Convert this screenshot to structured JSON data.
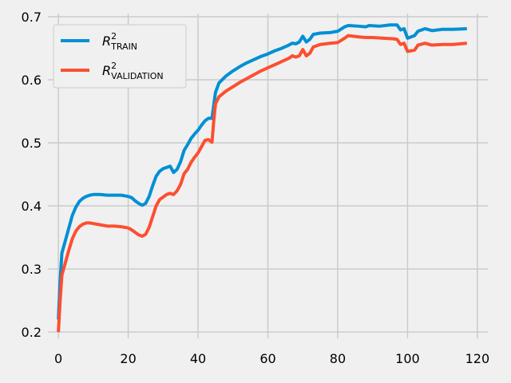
{
  "chart_data": {
    "type": "line",
    "title": "",
    "xlabel": "",
    "ylabel": "",
    "xlim": [
      -3,
      123
    ],
    "ylim": [
      0.19,
      0.705
    ],
    "x_ticks": [
      0,
      20,
      40,
      60,
      80,
      100,
      120
    ],
    "y_ticks": [
      0.2,
      0.3,
      0.4,
      0.5,
      0.6,
      0.7
    ],
    "x_tick_labels": [
      "0",
      "20",
      "40",
      "60",
      "80",
      "100",
      "120"
    ],
    "y_tick_labels": [
      "0.2",
      "0.3",
      "0.4",
      "0.5",
      "0.6",
      "0.7"
    ],
    "grid": true,
    "legend_placement": "top-left",
    "background": "#f0f0f0",
    "series": [
      {
        "symbol": "R",
        "sup": "2",
        "sub": "TRAIN",
        "color": "#008fd5",
        "points": [
          [
            0,
            0.22
          ],
          [
            0.5,
            0.28
          ],
          [
            1,
            0.325
          ],
          [
            2,
            0.345
          ],
          [
            3,
            0.365
          ],
          [
            4,
            0.385
          ],
          [
            5,
            0.398
          ],
          [
            6,
            0.407
          ],
          [
            7,
            0.412
          ],
          [
            8,
            0.415
          ],
          [
            9,
            0.417
          ],
          [
            10,
            0.418
          ],
          [
            12,
            0.418
          ],
          [
            14,
            0.417
          ],
          [
            16,
            0.417
          ],
          [
            18,
            0.417
          ],
          [
            20,
            0.415
          ],
          [
            21,
            0.413
          ],
          [
            22,
            0.408
          ],
          [
            23,
            0.404
          ],
          [
            24,
            0.401
          ],
          [
            25,
            0.404
          ],
          [
            26,
            0.415
          ],
          [
            27,
            0.432
          ],
          [
            28,
            0.447
          ],
          [
            29,
            0.455
          ],
          [
            30,
            0.459
          ],
          [
            31,
            0.461
          ],
          [
            32,
            0.463
          ],
          [
            33,
            0.453
          ],
          [
            34,
            0.458
          ],
          [
            35,
            0.47
          ],
          [
            36,
            0.488
          ],
          [
            37,
            0.497
          ],
          [
            38,
            0.507
          ],
          [
            39,
            0.514
          ],
          [
            40,
            0.52
          ],
          [
            41,
            0.528
          ],
          [
            42,
            0.535
          ],
          [
            43,
            0.539
          ],
          [
            44,
            0.539
          ],
          [
            44.5,
            0.56
          ],
          [
            45,
            0.58
          ],
          [
            46,
            0.595
          ],
          [
            48,
            0.606
          ],
          [
            50,
            0.614
          ],
          [
            52,
            0.621
          ],
          [
            54,
            0.627
          ],
          [
            56,
            0.632
          ],
          [
            58,
            0.637
          ],
          [
            60,
            0.641
          ],
          [
            62,
            0.646
          ],
          [
            64,
            0.65
          ],
          [
            66,
            0.655
          ],
          [
            67,
            0.658
          ],
          [
            68,
            0.657
          ],
          [
            69,
            0.66
          ],
          [
            70,
            0.669
          ],
          [
            71,
            0.66
          ],
          [
            72,
            0.664
          ],
          [
            73,
            0.672
          ],
          [
            75,
            0.674
          ],
          [
            78,
            0.675
          ],
          [
            80,
            0.677
          ],
          [
            82,
            0.684
          ],
          [
            83,
            0.686
          ],
          [
            86,
            0.685
          ],
          [
            88,
            0.684
          ],
          [
            89,
            0.686
          ],
          [
            92,
            0.685
          ],
          [
            95,
            0.687
          ],
          [
            97,
            0.687
          ],
          [
            98,
            0.679
          ],
          [
            99,
            0.681
          ],
          [
            100,
            0.666
          ],
          [
            101,
            0.668
          ],
          [
            102,
            0.67
          ],
          [
            103,
            0.677
          ],
          [
            105,
            0.681
          ],
          [
            107,
            0.678
          ],
          [
            110,
            0.68
          ],
          [
            113,
            0.68
          ],
          [
            117,
            0.681
          ]
        ]
      },
      {
        "symbol": "R",
        "sup": "2",
        "sub": "VALIDATION",
        "color": "#fc4f30",
        "points": [
          [
            0,
            0.2
          ],
          [
            0.5,
            0.25
          ],
          [
            1,
            0.29
          ],
          [
            2,
            0.31
          ],
          [
            3,
            0.33
          ],
          [
            4,
            0.348
          ],
          [
            5,
            0.36
          ],
          [
            6,
            0.367
          ],
          [
            7,
            0.371
          ],
          [
            8,
            0.373
          ],
          [
            9,
            0.373
          ],
          [
            10,
            0.372
          ],
          [
            12,
            0.37
          ],
          [
            14,
            0.368
          ],
          [
            16,
            0.368
          ],
          [
            18,
            0.367
          ],
          [
            20,
            0.365
          ],
          [
            21,
            0.362
          ],
          [
            22,
            0.358
          ],
          [
            23,
            0.354
          ],
          [
            24,
            0.352
          ],
          [
            25,
            0.355
          ],
          [
            26,
            0.366
          ],
          [
            27,
            0.383
          ],
          [
            28,
            0.4
          ],
          [
            29,
            0.41
          ],
          [
            30,
            0.414
          ],
          [
            31,
            0.418
          ],
          [
            32,
            0.42
          ],
          [
            33,
            0.418
          ],
          [
            34,
            0.424
          ],
          [
            35,
            0.434
          ],
          [
            36,
            0.451
          ],
          [
            37,
            0.458
          ],
          [
            38,
            0.469
          ],
          [
            39,
            0.477
          ],
          [
            40,
            0.484
          ],
          [
            41,
            0.494
          ],
          [
            42,
            0.504
          ],
          [
            43,
            0.505
          ],
          [
            44,
            0.501
          ],
          [
            44.5,
            0.535
          ],
          [
            45,
            0.562
          ],
          [
            46,
            0.573
          ],
          [
            48,
            0.582
          ],
          [
            50,
            0.589
          ],
          [
            52,
            0.596
          ],
          [
            54,
            0.602
          ],
          [
            56,
            0.608
          ],
          [
            58,
            0.614
          ],
          [
            60,
            0.619
          ],
          [
            62,
            0.624
          ],
          [
            64,
            0.629
          ],
          [
            66,
            0.634
          ],
          [
            67,
            0.638
          ],
          [
            68,
            0.636
          ],
          [
            69,
            0.638
          ],
          [
            70,
            0.648
          ],
          [
            71,
            0.638
          ],
          [
            72,
            0.642
          ],
          [
            73,
            0.652
          ],
          [
            75,
            0.656
          ],
          [
            78,
            0.658
          ],
          [
            80,
            0.659
          ],
          [
            82,
            0.666
          ],
          [
            83,
            0.67
          ],
          [
            86,
            0.668
          ],
          [
            88,
            0.667
          ],
          [
            90,
            0.667
          ],
          [
            93,
            0.666
          ],
          [
            96,
            0.665
          ],
          [
            97,
            0.664
          ],
          [
            98,
            0.656
          ],
          [
            99,
            0.658
          ],
          [
            100,
            0.645
          ],
          [
            101,
            0.646
          ],
          [
            102,
            0.647
          ],
          [
            103,
            0.655
          ],
          [
            105,
            0.658
          ],
          [
            107,
            0.655
          ],
          [
            110,
            0.656
          ],
          [
            113,
            0.656
          ],
          [
            117,
            0.658
          ]
        ]
      }
    ]
  }
}
